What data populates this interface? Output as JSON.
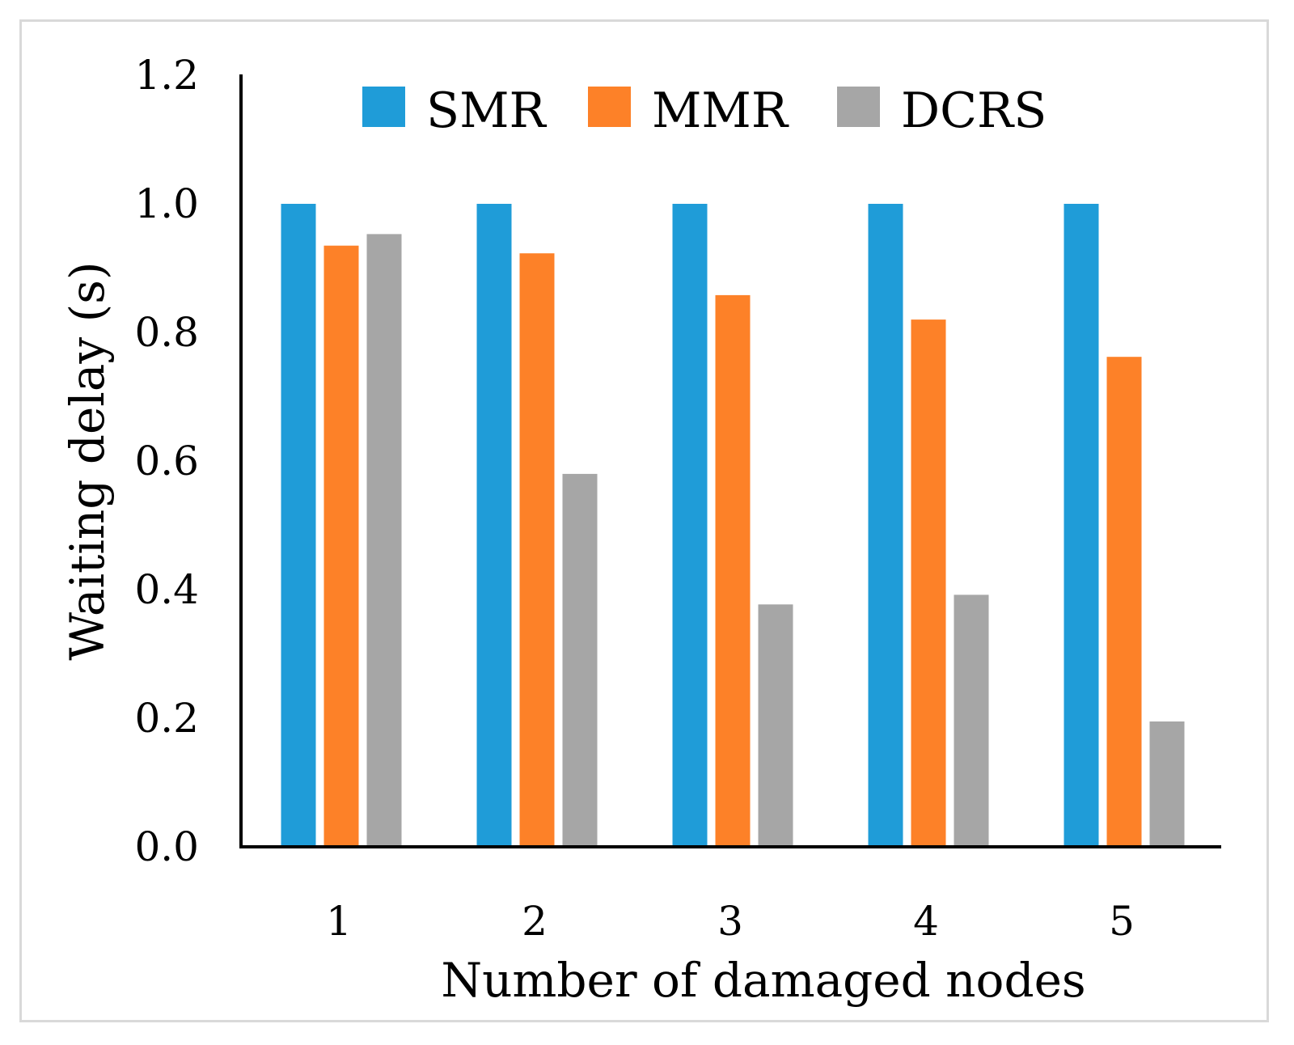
{
  "chart_data": {
    "type": "bar",
    "title": "",
    "xlabel": "Number of damaged nodes",
    "ylabel": "Waiting delay (s)",
    "categories": [
      "1",
      "2",
      "3",
      "4",
      "5"
    ],
    "ylim": [
      0,
      1.2
    ],
    "yticks": [
      "0.0",
      "0.2",
      "0.4",
      "0.6",
      "0.8",
      "1.0",
      "1.2"
    ],
    "grid": false,
    "legend_position": "top",
    "series": [
      {
        "name": "SMR",
        "color": "#1f9cd8",
        "values": [
          1.0,
          1.0,
          1.0,
          1.0,
          1.0
        ]
      },
      {
        "name": "MMR",
        "color": "#fd8128",
        "values": [
          0.935,
          0.923,
          0.858,
          0.82,
          0.762
        ]
      },
      {
        "name": "DCRS",
        "color": "#a6a6a6",
        "values": [
          0.953,
          0.58,
          0.377,
          0.392,
          0.195
        ]
      }
    ]
  }
}
